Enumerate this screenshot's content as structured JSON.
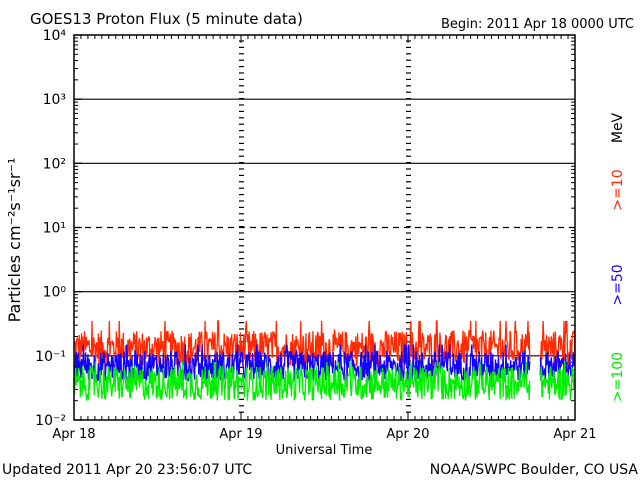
{
  "header": {
    "title": "GOES13 Proton Flux (5 minute data)",
    "begin": "Begin: 2011 Apr 18 0000 UTC"
  },
  "footer": {
    "updated": "Updated 2011 Apr 20 23:56:07 UTC",
    "credit": "NOAA/SWPC Boulder, CO USA"
  },
  "colors": {
    "ge10": "#ff2a00",
    "ge50": "#1400ff",
    "ge100": "#00ee00",
    "grid": "#000000"
  },
  "chart_data": {
    "type": "line",
    "title": "GOES13 Proton Flux (5 minute data)",
    "xlabel": "Universal Time",
    "ylabel": "Particles cm⁻²s⁻¹sr⁻¹",
    "yscale": "log",
    "ylim": [
      0.01,
      10000
    ],
    "ytick_labels": [
      "10⁻²",
      "10⁻¹",
      "10⁰",
      "10¹",
      "10²",
      "10³",
      "10⁴"
    ],
    "ytick_values": [
      0.01,
      0.1,
      1,
      10,
      100,
      1000,
      10000
    ],
    "xlim_days": [
      0,
      3
    ],
    "xtick_labels": [
      "Apr 18",
      "Apr 19",
      "Apr 20",
      "Apr 21"
    ],
    "reference_line_dashed": 10,
    "energy_unit": "MeV",
    "legend_placement": "right-vertical",
    "data_gap": [
      "Apr 20 17:30",
      "Apr 20 19:00"
    ],
    "series": [
      {
        "name": ">=10",
        "color": "#ff2a00",
        "typical_range": [
          0.07,
          0.25
        ],
        "peak": 0.35
      },
      {
        "name": ">=50",
        "color": "#1400ff",
        "typical_range": [
          0.04,
          0.12
        ],
        "peak": 0.15
      },
      {
        "name": ">=100",
        "color": "#00ee00",
        "typical_range": [
          0.02,
          0.07
        ],
        "peak": 0.08
      }
    ]
  }
}
